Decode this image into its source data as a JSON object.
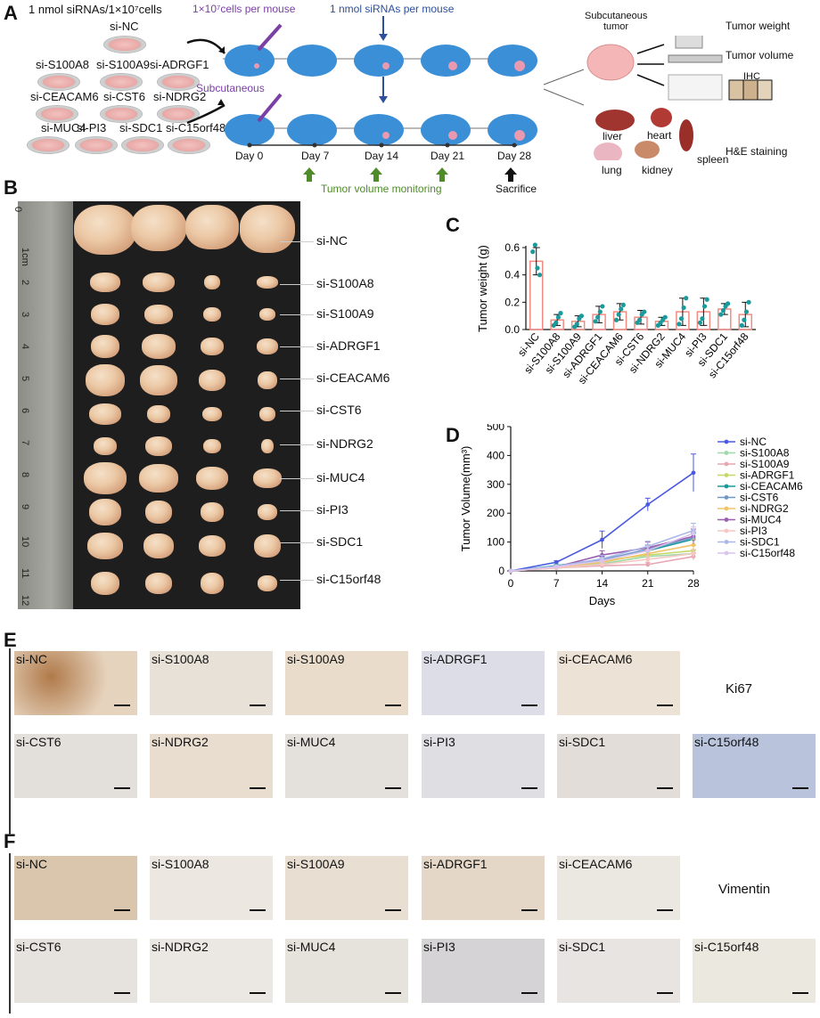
{
  "panel_letters": [
    "A",
    "B",
    "C",
    "D",
    "E",
    "F"
  ],
  "panelA": {
    "left_header": "1 nmol siRNAs/1×10⁷cells",
    "group_labels": [
      "si-NC",
      "si-S100A8",
      "si-S100A9",
      "si-ADRGF1",
      "si-CEACAM6",
      "si-CST6",
      "si-NDRG2",
      "si-MUC4",
      "si-PI3",
      "si-SDC1",
      "si-C15orf48"
    ],
    "cells_per_mouse": "1×10⁷cells per mouse",
    "sirna_per_mouse": "1 nmol siRNAs per mouse",
    "route": "Subcutaneous",
    "days": [
      "Day 0",
      "Day 7",
      "Day 14",
      "Day 21",
      "Day 28"
    ],
    "monitoring": "Tumor volume monitoring",
    "sacrifice": "Sacrifice",
    "subq_tumor": "Subcutaneous tumor",
    "outputs": [
      "Tumor weight",
      "Tumor volume",
      "IHC"
    ],
    "organs": [
      "liver",
      "heart",
      "lung",
      "kidney",
      "spleen"
    ],
    "he": "H&E staining"
  },
  "panelB": {
    "labels": [
      "si-NC",
      "si-S100A8",
      "si-S100A9",
      "si-ADRGF1",
      "si-CEACAM6",
      "si-CST6",
      "si-NDRG2",
      "si-MUC4",
      "si-PI3",
      "si-SDC1",
      "si-C15orf48"
    ],
    "ruler": [
      "0",
      "1cm",
      "2",
      "3",
      "4",
      "5",
      "6",
      "7",
      "8",
      "9",
      "10",
      "11",
      "12"
    ]
  },
  "chart_data": [
    {
      "type": "bar",
      "ylabel": "Tumor weight (g)",
      "ylim": [
        0,
        0.6
      ],
      "yticks": [
        "0.0",
        "0.2",
        "0.4",
        "0.6"
      ],
      "categories": [
        "si-NC",
        "si-S100A8",
        "si-S100A9",
        "si-ADRGF1",
        "si-CEACAM6",
        "si-CST6",
        "si-NDRG2",
        "si-MUC4",
        "si-PI3",
        "si-SDC1",
        "si-C15orf48"
      ],
      "values": [
        0.5,
        0.07,
        0.06,
        0.11,
        0.13,
        0.09,
        0.06,
        0.13,
        0.13,
        0.15,
        0.11
      ],
      "errors": [
        0.1,
        0.04,
        0.04,
        0.06,
        0.06,
        0.05,
        0.03,
        0.1,
        0.1,
        0.04,
        0.09
      ],
      "points": [
        [
          0.57,
          0.62,
          0.45,
          0.4
        ],
        [
          0.03,
          0.05,
          0.09,
          0.12
        ],
        [
          0.02,
          0.04,
          0.08,
          0.1
        ],
        [
          0.06,
          0.09,
          0.13,
          0.17
        ],
        [
          0.07,
          0.11,
          0.15,
          0.18
        ],
        [
          0.05,
          0.07,
          0.11,
          0.13
        ],
        [
          0.03,
          0.05,
          0.07,
          0.09
        ],
        [
          0.04,
          0.08,
          0.16,
          0.23
        ],
        [
          0.05,
          0.08,
          0.17,
          0.22
        ],
        [
          0.11,
          0.14,
          0.17,
          0.19
        ],
        [
          0.03,
          0.07,
          0.13,
          0.2
        ]
      ],
      "bar_color": "#f28b82",
      "point_color": "#1b9a9c"
    },
    {
      "type": "line",
      "xlabel": "Days",
      "ylabel": "Tumor Volume(mm³)",
      "x": [
        0,
        7,
        14,
        21,
        28
      ],
      "xlim": [
        0,
        28
      ],
      "ylim": [
        0,
        500
      ],
      "yticks": [
        0,
        100,
        200,
        300,
        400,
        500
      ],
      "series": [
        {
          "name": "si-NC",
          "color": "#4a5ae0",
          "values": [
            0,
            30,
            108,
            230,
            340
          ],
          "err": [
            0,
            5,
            30,
            22,
            65
          ]
        },
        {
          "name": "si-S100A8",
          "color": "#9fd8a9",
          "values": [
            0,
            12,
            25,
            50,
            60
          ],
          "err": [
            0,
            3,
            8,
            10,
            12
          ]
        },
        {
          "name": "si-S100A9",
          "color": "#e8a6b2",
          "values": [
            0,
            10,
            18,
            22,
            50
          ],
          "err": [
            0,
            3,
            6,
            8,
            12
          ]
        },
        {
          "name": "si-ADRGF1",
          "color": "#c5d86a",
          "values": [
            0,
            15,
            35,
            55,
            70
          ],
          "err": [
            0,
            4,
            10,
            14,
            18
          ]
        },
        {
          "name": "si-CEACAM6",
          "color": "#1b9a9c",
          "values": [
            0,
            18,
            40,
            70,
            110
          ],
          "err": [
            0,
            4,
            10,
            16,
            20
          ]
        },
        {
          "name": "si-CST6",
          "color": "#6f9ac7",
          "values": [
            0,
            15,
            38,
            75,
            115
          ],
          "err": [
            0,
            4,
            10,
            15,
            20
          ]
        },
        {
          "name": "si-NDRG2",
          "color": "#f2c46a",
          "values": [
            0,
            12,
            30,
            60,
            90
          ],
          "err": [
            0,
            3,
            8,
            12,
            18
          ]
        },
        {
          "name": "si-MUC4",
          "color": "#9b5fb0",
          "values": [
            0,
            14,
            55,
            80,
            120
          ],
          "err": [
            0,
            4,
            15,
            20,
            25
          ]
        },
        {
          "name": "si-PI3",
          "color": "#f6c7c3",
          "values": [
            0,
            10,
            22,
            40,
            60
          ],
          "err": [
            0,
            3,
            8,
            10,
            14
          ]
        },
        {
          "name": "si-SDC1",
          "color": "#a9b8e8",
          "values": [
            0,
            16,
            42,
            85,
            140
          ],
          "err": [
            0,
            4,
            12,
            18,
            25
          ]
        },
        {
          "name": "si-C15orf48",
          "color": "#d9c4ee",
          "values": [
            0,
            14,
            35,
            70,
            130
          ],
          "err": [
            0,
            4,
            10,
            16,
            22
          ]
        }
      ]
    }
  ],
  "panelE": {
    "stain": "Ki67",
    "labels": [
      "si-NC",
      "si-S100A8",
      "si-S100A9",
      "si-ADRGF1",
      "si-CEACAM6",
      "si-CST6",
      "si-NDRG2",
      "si-MUC4",
      "si-PI3",
      "si-SDC1",
      "si-C15orf48"
    ]
  },
  "panelF": {
    "stain": "Vimentin",
    "labels": [
      "si-NC",
      "si-S100A8",
      "si-S100A9",
      "si-ADRGF1",
      "si-CEACAM6",
      "si-CST6",
      "si-NDRG2",
      "si-MUC4",
      "si-PI3",
      "si-SDC1",
      "si-C15orf48"
    ]
  }
}
